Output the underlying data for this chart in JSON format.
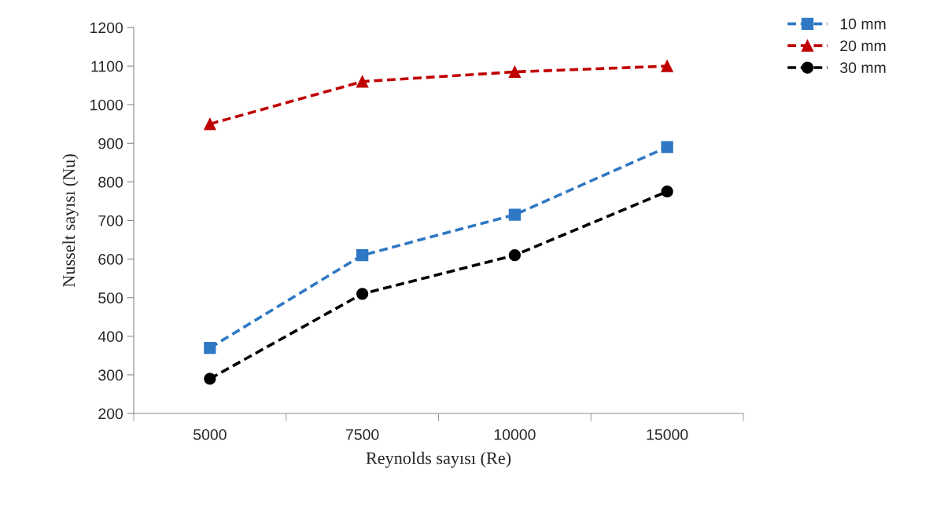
{
  "chart_data": {
    "type": "line",
    "xlabel": "Reynolds sayısı (Re)",
    "ylabel": "Nusselt sayısı (Nu)",
    "categories": [
      "5000",
      "7500",
      "10000",
      "15000"
    ],
    "series": [
      {
        "name": "10 mm",
        "color": "#2f78c4",
        "marker": "square",
        "values": [
          370,
          610,
          715,
          890
        ]
      },
      {
        "name": "20 mm",
        "color": "#c00000",
        "marker": "triangle",
        "values": [
          950,
          1060,
          1085,
          1100
        ]
      },
      {
        "name": "30 mm",
        "color": "#000000",
        "marker": "circle",
        "values": [
          290,
          510,
          610,
          775
        ]
      }
    ],
    "ylim": [
      200,
      1200
    ],
    "yticks": [
      200,
      300,
      400,
      500,
      600,
      700,
      800,
      900,
      1000,
      1100,
      1200
    ],
    "grid": false,
    "legend": "top right",
    "line_style": "dashed"
  }
}
